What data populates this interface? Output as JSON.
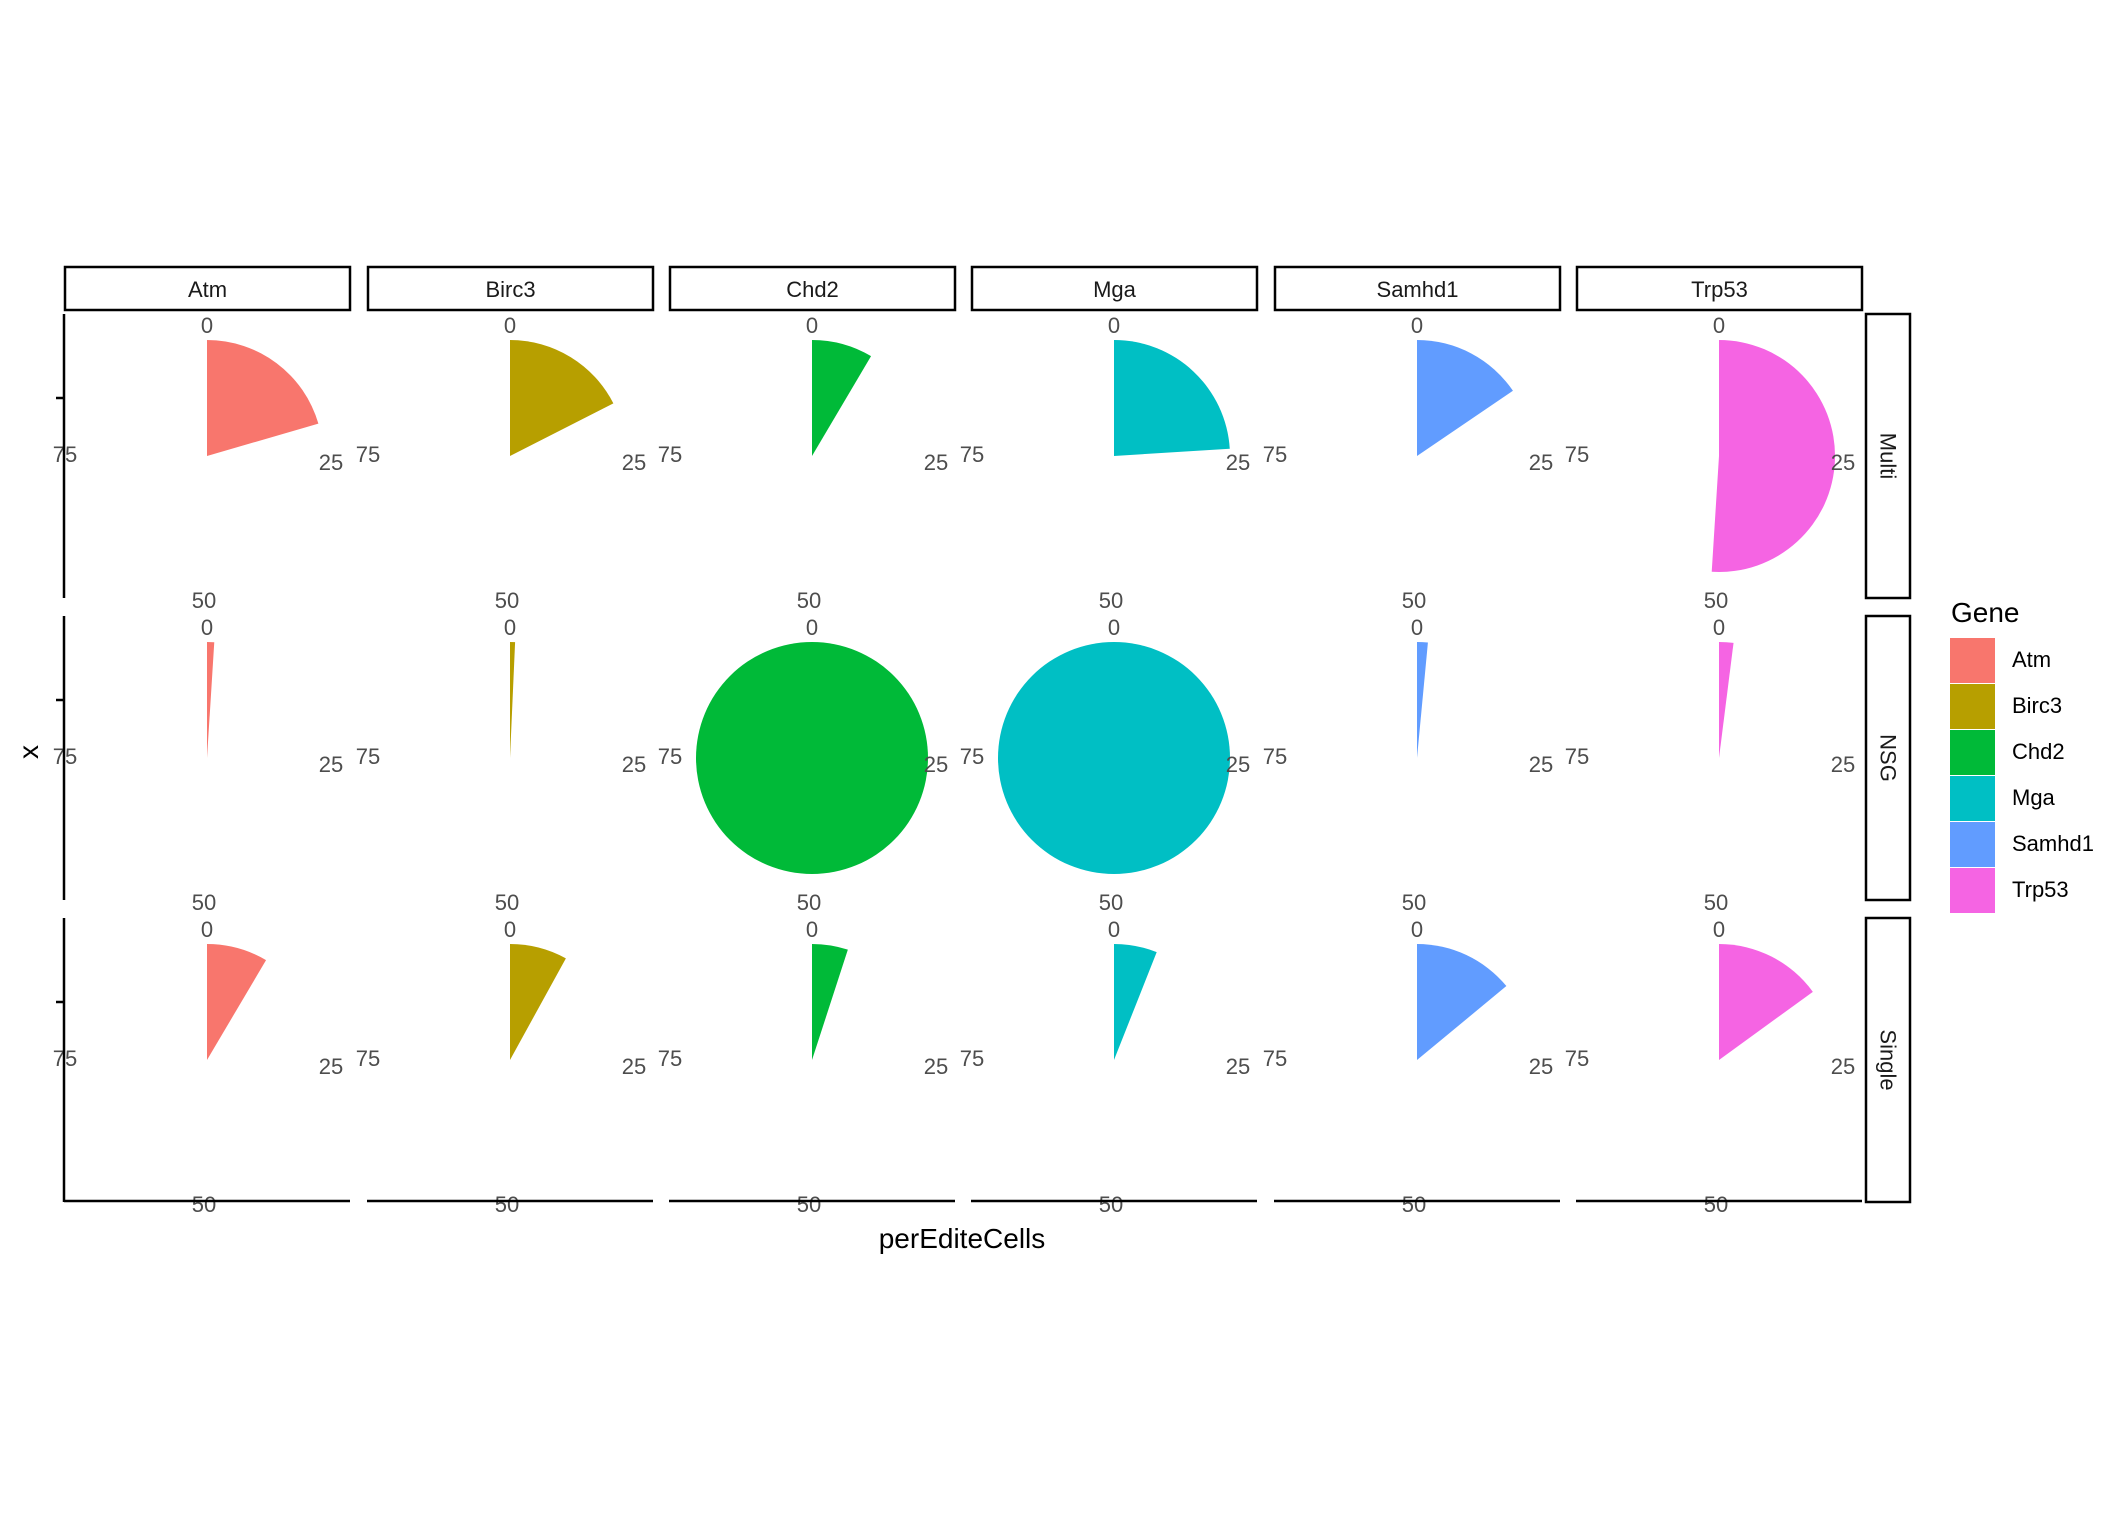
{
  "chart_data": {
    "type": "pie",
    "coord": "polar",
    "x_label": "perEditeCells",
    "y_label": "x",
    "theta_ticks": [
      "0",
      "25",
      "50",
      "75"
    ],
    "theta_max": 100,
    "genes": [
      "Atm",
      "Birc3",
      "Chd2",
      "Mga",
      "Samhd1",
      "Trp53"
    ],
    "groups": [
      "Multi",
      "NSG",
      "Single"
    ],
    "values": {
      "Multi": [
        20.5,
        17.5,
        8.5,
        24.0,
        15.5,
        51.0
      ],
      "NSG": [
        1.0,
        0.7,
        100,
        100,
        1.5,
        2.0
      ],
      "Single": [
        8.5,
        8.0,
        5.0,
        6.0,
        14.0,
        15.0
      ]
    },
    "legend": {
      "title": "Gene",
      "position": "right",
      "items": [
        {
          "label": "Atm",
          "color": "#F8766D"
        },
        {
          "label": "Birc3",
          "color": "#B79F00"
        },
        {
          "label": "Chd2",
          "color": "#00BA38"
        },
        {
          "label": "Mga",
          "color": "#00BFC4"
        },
        {
          "label": "Samhd1",
          "color": "#619CFF"
        },
        {
          "label": "Trp53",
          "color": "#F564E3"
        }
      ]
    }
  }
}
